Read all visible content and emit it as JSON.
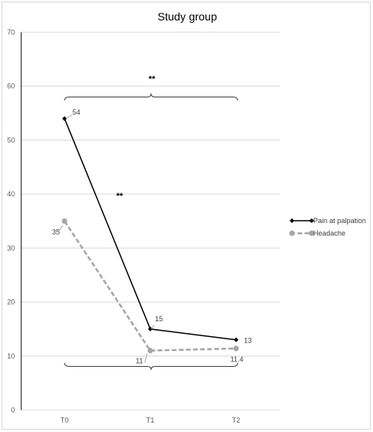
{
  "chart_data": {
    "type": "line",
    "title": "Study group",
    "categories": [
      "T0",
      "T1",
      "T2"
    ],
    "ylim": [
      0,
      70
    ],
    "yticks": [
      0,
      10,
      20,
      30,
      40,
      50,
      60,
      70
    ],
    "grid": true,
    "legend_position": "right",
    "series": [
      {
        "name": "Pain at palpation",
        "values": [
          54,
          15,
          13
        ],
        "labels": [
          "54",
          "15",
          "13"
        ],
        "color": "#000000",
        "style": "solid",
        "marker": "diamond"
      },
      {
        "name": "Headache",
        "values": [
          35,
          11,
          11.4
        ],
        "labels": [
          "35",
          "11",
          "11.4"
        ],
        "color": "#a6a6a6",
        "style": "dashed",
        "marker": "circle"
      }
    ],
    "annotations": [
      {
        "text": "**",
        "context": "bracket above T0–T2"
      },
      {
        "text": "**",
        "context": "on Pain at palpation line between T0 and T1"
      }
    ]
  }
}
